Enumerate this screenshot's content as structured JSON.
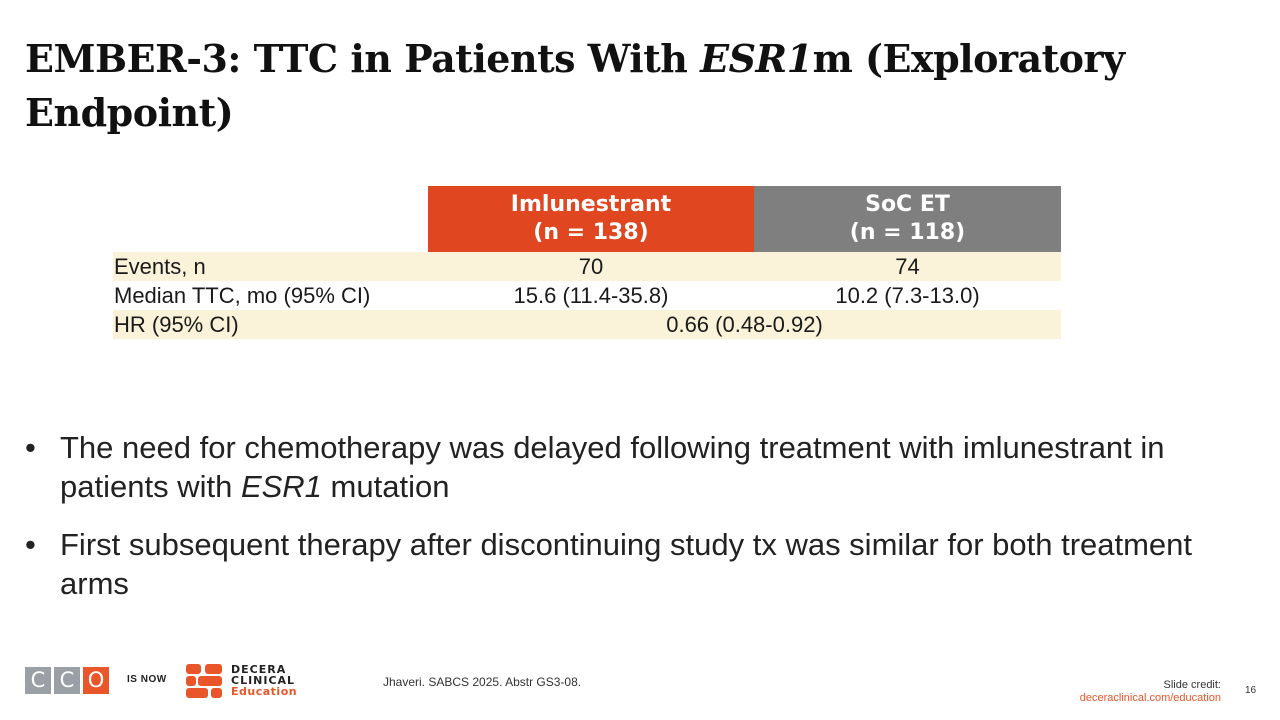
{
  "title": {
    "part1": "EMBER-3: TTC in Patients With ",
    "italic": "ESR1",
    "part2": "m (Exploratory Endpoint)"
  },
  "table": {
    "headers": [
      {
        "name": "Imlunestrant",
        "n": "(n = 138)",
        "color": "#e0461f"
      },
      {
        "name": "SoC ET",
        "n": "(n = 118)",
        "color": "#7f7f7f"
      }
    ],
    "rows": [
      {
        "label": "Events, n",
        "a": "70",
        "b": "74"
      },
      {
        "label": "Median TTC, mo (95% CI)",
        "a": "15.6 (11.4-35.8)",
        "b": "10.2 (7.3-13.0)"
      },
      {
        "label": "HR (95% CI)",
        "span": "0.66 (0.48-0.92)"
      }
    ]
  },
  "bullets": [
    {
      "marker": "•",
      "pre": "The need for chemotherapy was delayed following treatment with imlunestrant in patients with ",
      "italic": "ESR1",
      "post": " mutation"
    },
    {
      "marker": "•",
      "pre": "First subsequent therapy after discontinuing study tx was similar for both treatment arms",
      "italic": "",
      "post": ""
    }
  ],
  "footer": {
    "cco_letters": [
      "C",
      "C",
      "O"
    ],
    "is_now": "IS NOW",
    "decera_line1": "DECERA",
    "decera_line2": "CLINICAL",
    "decera_line3": "Education",
    "citation": "Jhaveri. SABCS 2025. Abstr GS3-08.",
    "credit_label": "Slide credit:",
    "credit_link": "deceraclinical.com/education",
    "page_number": "16",
    "accent_color": "#e8562a"
  }
}
